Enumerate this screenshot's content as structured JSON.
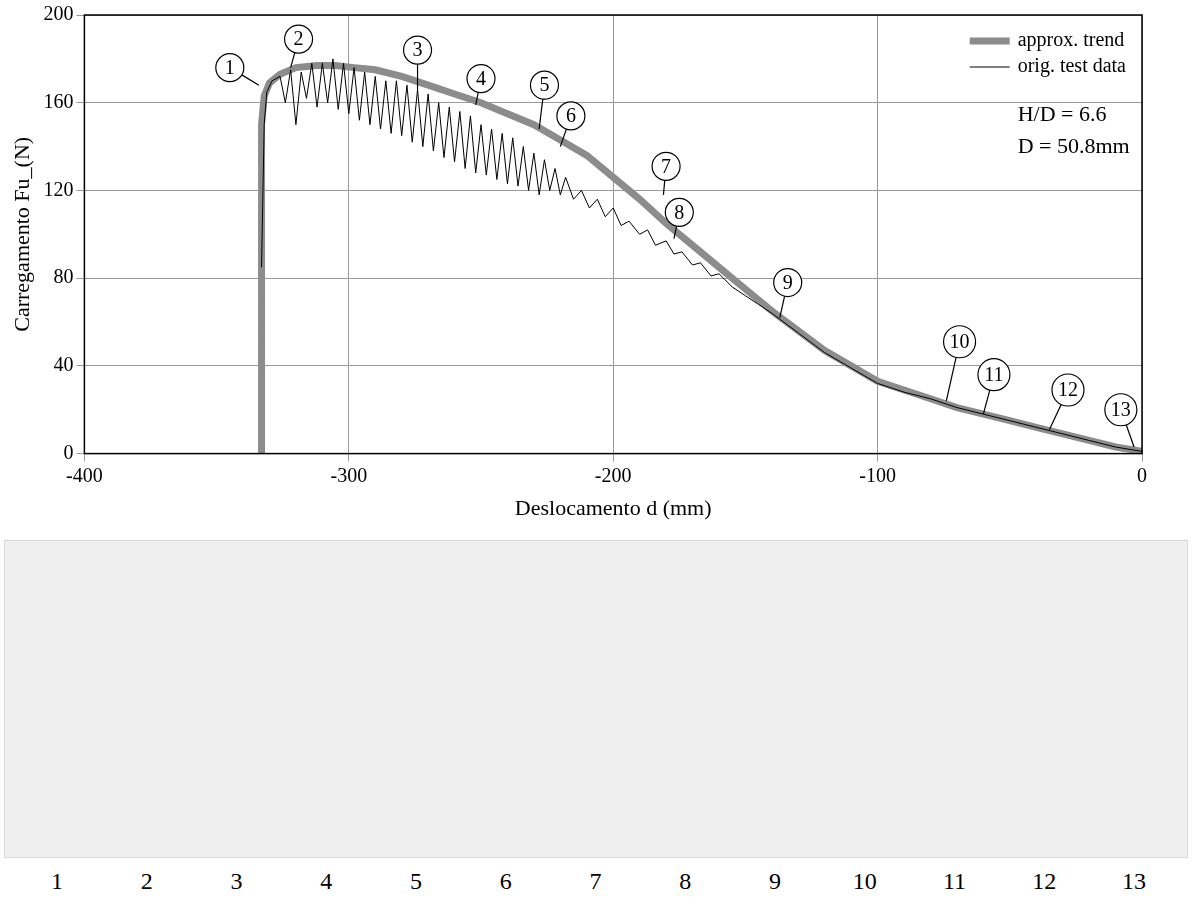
{
  "chart_data": {
    "type": "line",
    "x_label": "Deslocamento d (mm)",
    "y_label": "Carregamento Fu_(N)",
    "xlim": [
      -400,
      0
    ],
    "xticks": [
      -400,
      -300,
      -200,
      -100,
      0
    ],
    "ylim": [
      0,
      200
    ],
    "yticks": [
      0,
      40,
      80,
      120,
      160,
      200
    ],
    "grid": true,
    "legend": "upper right",
    "texts": [
      "H/D = 6.6",
      "D = 50.8mm"
    ],
    "series": [
      {
        "name": "approx. trend",
        "color": "#8c8c8c",
        "line_style": "thick",
        "x": [
          -333,
          -333,
          -332,
          -330,
          -326,
          -320,
          -312,
          -305,
          -298,
          -290,
          -280,
          -270,
          -260,
          -250,
          -240,
          -230,
          -220,
          -210,
          -200,
          -190,
          -180,
          -170,
          -160,
          -150,
          -140,
          -130,
          -120,
          -110,
          -100,
          -90,
          -80,
          -70,
          -60,
          -50,
          -40,
          -30,
          -20,
          -10,
          0
        ],
        "values": [
          0,
          150,
          163,
          169,
          173,
          176,
          177,
          177,
          176,
          175,
          172,
          168,
          164,
          160,
          155,
          150,
          143,
          136,
          126,
          116,
          105,
          95,
          85,
          75,
          65,
          56,
          47,
          40,
          33,
          29,
          25,
          21,
          18,
          15,
          12,
          9,
          6,
          3,
          1
        ]
      },
      {
        "name": "orig. test data",
        "color": "#000000",
        "line_style": "thin",
        "x": [
          -333,
          -332,
          -331,
          -329,
          -326,
          -324,
          -322,
          -320,
          -318,
          -316,
          -314,
          -312,
          -310,
          -308,
          -306,
          -304,
          -302,
          -300,
          -298,
          -296,
          -294,
          -292,
          -290,
          -288,
          -286,
          -284,
          -282,
          -280,
          -278,
          -276,
          -274,
          -272,
          -270,
          -268,
          -266,
          -264,
          -262,
          -260,
          -258,
          -256,
          -254,
          -252,
          -250,
          -248,
          -246,
          -244,
          -242,
          -240,
          -238,
          -236,
          -234,
          -232,
          -230,
          -228,
          -226,
          -224,
          -222,
          -220,
          -218,
          -215,
          -212,
          -209,
          -206,
          -203,
          -200,
          -197,
          -194,
          -190,
          -187,
          -184,
          -180,
          -177,
          -174,
          -170,
          -167,
          -163,
          -160,
          -155,
          -150,
          -145,
          -140,
          -130,
          -120,
          -110,
          -100,
          -90,
          -80,
          -70,
          -60,
          -50,
          -40,
          -30,
          -20,
          -10,
          0
        ],
        "values": [
          85,
          150,
          165,
          170,
          172,
          160,
          175,
          150,
          174,
          162,
          178,
          158,
          178,
          160,
          180,
          157,
          178,
          155,
          176,
          152,
          174,
          150,
          172,
          148,
          170,
          146,
          170,
          145,
          168,
          142,
          166,
          140,
          164,
          138,
          160,
          135,
          158,
          133,
          156,
          130,
          154,
          128,
          150,
          127,
          148,
          125,
          146,
          123,
          144,
          122,
          140,
          120,
          137,
          118,
          134,
          120,
          130,
          118,
          126,
          116,
          120,
          112,
          116,
          108,
          112,
          104,
          106,
          100,
          102,
          95,
          97,
          91,
          92,
          86,
          87,
          81,
          82,
          76,
          72,
          68,
          64,
          55,
          46,
          39,
          32,
          28,
          25,
          21,
          18,
          15,
          12,
          9,
          6,
          3,
          1
        ]
      }
    ],
    "callouts": [
      {
        "label": "1",
        "x": -345,
        "y": 176,
        "point_x": -334,
        "point_y": 168
      },
      {
        "label": "2",
        "x": -319,
        "y": 189,
        "point_x": -322,
        "point_y": 176
      },
      {
        "label": "3",
        "x": -274,
        "y": 184,
        "point_x": -274,
        "point_y": 166
      },
      {
        "label": "4",
        "x": -250,
        "y": 171,
        "point_x": -252,
        "point_y": 159
      },
      {
        "label": "5",
        "x": -226,
        "y": 168,
        "point_x": -228,
        "point_y": 148
      },
      {
        "label": "6",
        "x": -216,
        "y": 154,
        "point_x": -220,
        "point_y": 140
      },
      {
        "label": "7",
        "x": -180,
        "y": 131,
        "point_x": -181,
        "point_y": 118
      },
      {
        "label": "8",
        "x": -175,
        "y": 110,
        "point_x": -177,
        "point_y": 98
      },
      {
        "label": "9",
        "x": -134,
        "y": 78,
        "point_x": -137,
        "point_y": 62
      },
      {
        "label": "10",
        "x": -69,
        "y": 51,
        "point_x": -74,
        "point_y": 24
      },
      {
        "label": "11",
        "x": -56,
        "y": 36,
        "point_x": -60,
        "point_y": 18
      },
      {
        "label": "12",
        "x": -28,
        "y": 29,
        "point_x": -35,
        "point_y": 11
      },
      {
        "label": "13",
        "x": -8,
        "y": 20,
        "point_x": -3,
        "point_y": 3
      }
    ],
    "strip_labels": [
      "1",
      "2",
      "3",
      "4",
      "5",
      "6",
      "7",
      "8",
      "9",
      "10",
      "11",
      "12",
      "13"
    ]
  }
}
